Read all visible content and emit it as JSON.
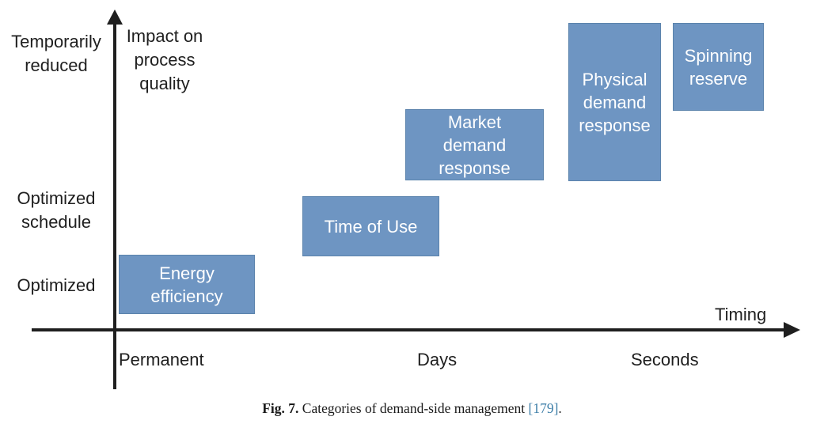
{
  "colors": {
    "box_fill": "#6e95c2",
    "box_border": "#5b83ac",
    "box_text": "#ffffff",
    "axis": "#1f1f1f",
    "label_text": "#1f1f1f",
    "caption_text": "#1a1a1a",
    "citation": "#3d7ea8"
  },
  "diagram": {
    "y_axis_title": "Impact on\nprocess\nquality",
    "x_axis_title": "Timing",
    "y_tick_labels": [
      "Temporarily\nreduced",
      "Optimized\nschedule",
      "Optimized"
    ],
    "x_tick_labels": [
      "Permanent",
      "Days",
      "Seconds"
    ],
    "boxes": [
      {
        "label": "Energy\nefficiency"
      },
      {
        "label": "Time of Use"
      },
      {
        "label": "Market\ndemand\nresponse"
      },
      {
        "label": "Physical\ndemand\nresponse"
      },
      {
        "label": "Spinning\nreserve"
      }
    ]
  },
  "caption": {
    "prefix": "Fig. 7.",
    "body": " Categories of demand-side management ",
    "citation": "[179]",
    "suffix": "."
  },
  "chart_data": {
    "type": "scatter",
    "title": "Categories of demand-side management",
    "xlabel": "Timing",
    "ylabel": "Impact on process quality",
    "x_categories": [
      "Permanent",
      "Days",
      "Seconds"
    ],
    "y_categories": [
      "Optimized",
      "Optimized schedule",
      "Temporarily reduced"
    ],
    "points": [
      {
        "label": "Energy efficiency",
        "x": "Permanent",
        "y": "Optimized"
      },
      {
        "label": "Time of Use",
        "x": "Days",
        "y": "Optimized schedule"
      },
      {
        "label": "Market demand response",
        "x": "Days",
        "y": "Temporarily reduced"
      },
      {
        "label": "Physical demand response",
        "x": "Seconds",
        "y": "Temporarily reduced"
      },
      {
        "label": "Spinning reserve",
        "x": "Seconds",
        "y": "Temporarily reduced"
      }
    ],
    "legend": "none",
    "grid": false
  }
}
